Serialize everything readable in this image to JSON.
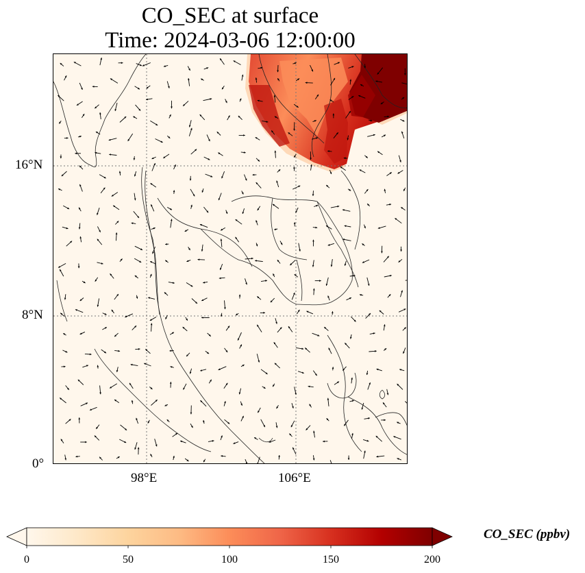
{
  "title": {
    "line1": "CO_SEC at surface",
    "line2": "Time: 2024-03-06 12:00:00"
  },
  "map": {
    "lat_ticks": [
      {
        "label": "16°N",
        "value": 16
      },
      {
        "label": "8°N",
        "value": 8
      },
      {
        "label": "0°",
        "value": 0
      }
    ],
    "lon_ticks": [
      {
        "label": "98°E",
        "value": 98
      },
      {
        "label": "106°E",
        "value": 106
      }
    ],
    "background_color": "#fff7ec",
    "plume_colors": [
      "#fdd49e",
      "#fc8d59",
      "#ef6548",
      "#d7301f",
      "#b30000",
      "#7f0000"
    ]
  },
  "colorbar": {
    "title": "CO_SEC (ppbv)",
    "ticks": [
      "0",
      "50",
      "100",
      "150",
      "200"
    ],
    "min": 0,
    "max": 200,
    "colors": [
      "#fff7ec",
      "#fee8c8",
      "#fdd49e",
      "#fdbb84",
      "#fc8d59",
      "#ef6548",
      "#d7301f",
      "#b30000",
      "#7f0000"
    ]
  }
}
